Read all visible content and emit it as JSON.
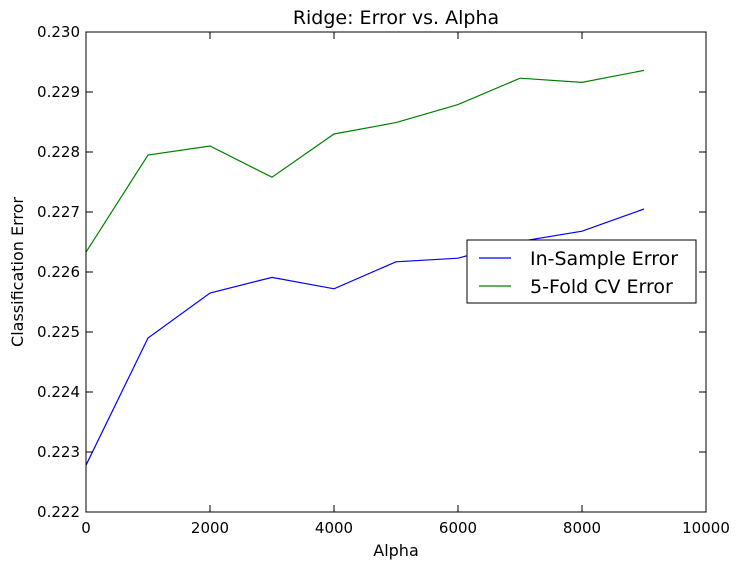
{
  "chart_data": {
    "type": "line",
    "title": "Ridge: Error vs. Alpha",
    "xlabel": "Alpha",
    "ylabel": "Classification Error",
    "xlim": [
      0,
      10000
    ],
    "ylim": [
      0.222,
      0.23
    ],
    "xticks": [
      "0",
      "2000",
      "4000",
      "6000",
      "8000",
      "10000"
    ],
    "yticks": [
      "0.222",
      "0.223",
      "0.224",
      "0.225",
      "0.226",
      "0.227",
      "0.228",
      "0.229",
      "0.230"
    ],
    "x": [
      0,
      1000,
      2000,
      3000,
      4000,
      5000,
      6000,
      7000,
      8000,
      9000
    ],
    "series": [
      {
        "name": "In-Sample Error",
        "color": "#0000ff",
        "values": [
          0.22278,
          0.2249,
          0.22565,
          0.22591,
          0.22572,
          0.22617,
          0.22623,
          0.22651,
          0.22668,
          0.22705
        ]
      },
      {
        "name": "5-Fold CV Error",
        "color": "#008000",
        "values": [
          0.22633,
          0.22795,
          0.2281,
          0.22758,
          0.2283,
          0.22849,
          0.22879,
          0.22923,
          0.22916,
          0.22936
        ]
      }
    ],
    "grid": false,
    "legend": "center-right"
  }
}
